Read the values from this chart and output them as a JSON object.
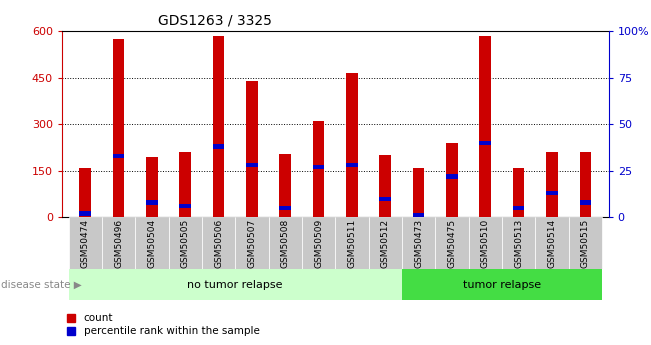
{
  "title": "GDS1263 / 3325",
  "samples": [
    "GSM50474",
    "GSM50496",
    "GSM50504",
    "GSM50505",
    "GSM50506",
    "GSM50507",
    "GSM50508",
    "GSM50509",
    "GSM50511",
    "GSM50512",
    "GSM50473",
    "GSM50475",
    "GSM50510",
    "GSM50513",
    "GSM50514",
    "GSM50515"
  ],
  "counts": [
    160,
    575,
    195,
    210,
    585,
    440,
    205,
    310,
    465,
    200,
    160,
    240,
    585,
    160,
    210,
    210
  ],
  "percentiles": [
    2,
    33,
    8,
    6,
    38,
    28,
    5,
    27,
    28,
    10,
    1,
    22,
    40,
    5,
    13,
    8
  ],
  "no_relapse_count": 10,
  "tumor_relapse_count": 6,
  "bar_color": "#cc0000",
  "pct_color": "#0000cc",
  "tick_color_left": "#cc0000",
  "tick_color_right": "#0000cc",
  "ylim_left": [
    0,
    600
  ],
  "ylim_right": [
    0,
    100
  ],
  "yticks_left": [
    0,
    150,
    300,
    450,
    600
  ],
  "yticks_right": [
    0,
    25,
    50,
    75,
    100
  ],
  "ytick_labels_right": [
    "0",
    "25",
    "50",
    "75",
    "100%"
  ],
  "grid_color": "black",
  "bg_plot": "#ffffff",
  "bg_tick": "#c8c8c8",
  "bg_no_relapse": "#ccffcc",
  "bg_tumor_relapse": "#44dd44",
  "label_no_relapse": "no tumor relapse",
  "label_tumor_relapse": "tumor relapse",
  "disease_state_label": "disease state",
  "legend_count": "count",
  "legend_pct": "percentile rank within the sample",
  "bar_width": 0.35
}
